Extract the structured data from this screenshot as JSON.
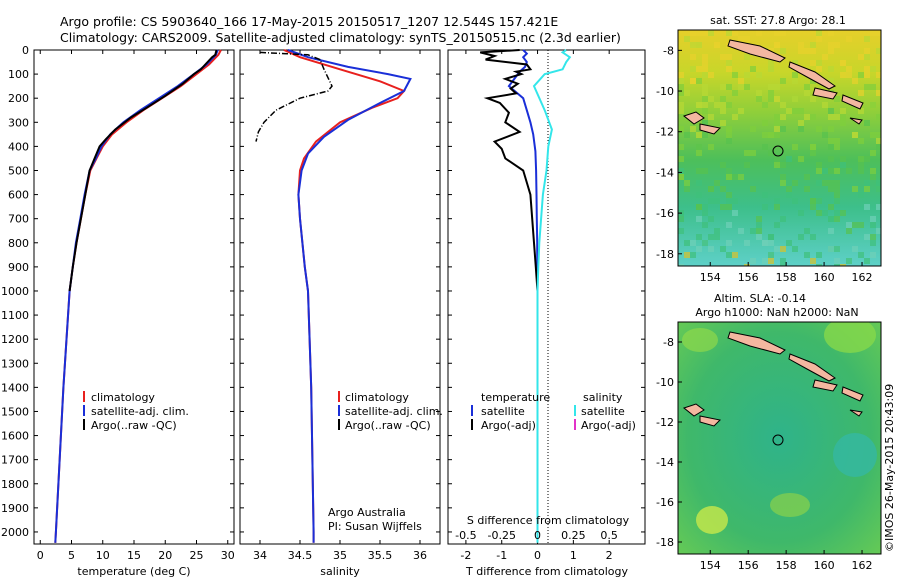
{
  "header": {
    "line1": "Argo profile: CS 5903640_166 17-May-2015 20150517_1207 12.544S 157.421E",
    "line2": "Climatology: CARS2009. Satellite-adjusted climatology: synTS_20150515.nc (2.3d earlier)"
  },
  "credits": {
    "argo": "Argo Australia",
    "pi": "PI: Susan Wijffels",
    "stamp": "©IMOS 26-May-2015 20:43:09"
  },
  "colors": {
    "climatology": "#e8201e",
    "satellite": "#1a2fd8",
    "argo": "#000000",
    "satellite_salinity": "#33e6ea",
    "argo_salinity": "#e233c8"
  },
  "chart_data": [
    {
      "type": "line",
      "panel": "temperature",
      "xlabel": "temperature (deg C)",
      "ylabel": "",
      "xlim": [
        -1,
        31
      ],
      "ylim": [
        2050,
        0
      ],
      "xticks": [
        0,
        5,
        10,
        15,
        20,
        25,
        30
      ],
      "yticks": [
        0,
        100,
        200,
        300,
        400,
        500,
        600,
        700,
        800,
        900,
        1000,
        1100,
        1200,
        1300,
        1400,
        1500,
        1600,
        1700,
        1800,
        1900,
        2000
      ],
      "legend": [
        "climatology",
        "satellite-adj. clim.",
        "Argo(..raw -QC)"
      ],
      "series": [
        {
          "name": "climatology",
          "color": "#e8201e",
          "points": [
            [
              28.9,
              0
            ],
            [
              28.5,
              20
            ],
            [
              27,
              60
            ],
            [
              25,
              100
            ],
            [
              22.5,
              150
            ],
            [
              19.5,
              200
            ],
            [
              16.5,
              250
            ],
            [
              13.8,
              300
            ],
            [
              11.5,
              350
            ],
            [
              10,
              400
            ],
            [
              9,
              450
            ],
            [
              8,
              500
            ],
            [
              7.2,
              600
            ],
            [
              6.5,
              700
            ],
            [
              5.8,
              800
            ],
            [
              5.2,
              900
            ],
            [
              4.7,
              1000
            ],
            [
              4.2,
              1200
            ],
            [
              3.7,
              1400
            ],
            [
              3.3,
              1600
            ],
            [
              2.9,
              1800
            ],
            [
              2.5,
              2000
            ],
            [
              2.4,
              2045
            ]
          ]
        },
        {
          "name": "satellite-adj. clim.",
          "color": "#1a2fd8",
          "points": [
            [
              28.4,
              0
            ],
            [
              28.1,
              20
            ],
            [
              26.6,
              60
            ],
            [
              24.6,
              100
            ],
            [
              22,
              150
            ],
            [
              19,
              200
            ],
            [
              16,
              250
            ],
            [
              13.3,
              300
            ],
            [
              11.2,
              350
            ],
            [
              9.8,
              400
            ],
            [
              8.9,
              450
            ],
            [
              7.9,
              500
            ],
            [
              7.1,
              600
            ],
            [
              6.4,
              700
            ],
            [
              5.7,
              800
            ],
            [
              5.2,
              900
            ],
            [
              4.7,
              1000
            ],
            [
              4.2,
              1200
            ],
            [
              3.7,
              1400
            ],
            [
              3.3,
              1600
            ],
            [
              2.9,
              1800
            ],
            [
              2.5,
              2000
            ],
            [
              2.4,
              2045
            ]
          ]
        },
        {
          "name": "Argo(..raw -QC)",
          "color": "#000000",
          "points": [
            [
              28.2,
              0
            ],
            [
              28,
              20
            ],
            [
              27.5,
              30
            ],
            [
              26.4,
              60
            ],
            [
              25.7,
              80
            ],
            [
              24.6,
              100
            ],
            [
              22.8,
              140
            ],
            [
              20,
              190
            ],
            [
              17,
              240
            ],
            [
              14.5,
              280
            ],
            [
              12,
              330
            ],
            [
              10.5,
              370
            ],
            [
              9.5,
              400
            ],
            [
              8.7,
              450
            ],
            [
              7.9,
              500
            ],
            [
              7.2,
              600
            ],
            [
              6.5,
              700
            ],
            [
              5.8,
              800
            ],
            [
              5.2,
              900
            ],
            [
              4.7,
              1000
            ]
          ]
        }
      ]
    },
    {
      "type": "line",
      "panel": "salinity",
      "xlabel": "salinity",
      "xlim": [
        33.75,
        36.25
      ],
      "ylim": [
        2050,
        0
      ],
      "xticks": [
        34,
        34.5,
        35,
        35.5,
        36
      ],
      "legend": [
        "climatology",
        "satellite-adj. clim.",
        "Argo(..raw -QC)"
      ],
      "series": [
        {
          "name": "climatology",
          "color": "#e8201e",
          "points": [
            [
              34.3,
              0
            ],
            [
              34.5,
              30
            ],
            [
              35,
              80
            ],
            [
              35.5,
              130
            ],
            [
              35.8,
              170
            ],
            [
              35.72,
              200
            ],
            [
              35.4,
              240
            ],
            [
              35,
              300
            ],
            [
              34.7,
              380
            ],
            [
              34.55,
              450
            ],
            [
              34.5,
              500
            ],
            [
              34.48,
              600
            ],
            [
              34.5,
              700
            ],
            [
              34.53,
              800
            ],
            [
              34.56,
              900
            ],
            [
              34.6,
              1000
            ],
            [
              34.62,
              1200
            ],
            [
              34.64,
              1400
            ],
            [
              34.65,
              1600
            ],
            [
              34.66,
              1800
            ],
            [
              34.67,
              2000
            ],
            [
              34.67,
              2045
            ]
          ]
        },
        {
          "name": "satellite-adj. clim.",
          "color": "#1a2fd8",
          "points": [
            [
              34.35,
              0
            ],
            [
              34.6,
              30
            ],
            [
              35.1,
              70
            ],
            [
              35.6,
              100
            ],
            [
              35.88,
              120
            ],
            [
              35.8,
              170
            ],
            [
              35.5,
              220
            ],
            [
              35.1,
              290
            ],
            [
              34.8,
              360
            ],
            [
              34.6,
              430
            ],
            [
              34.52,
              500
            ],
            [
              34.48,
              600
            ],
            [
              34.5,
              700
            ],
            [
              34.53,
              800
            ],
            [
              34.56,
              900
            ],
            [
              34.6,
              1000
            ],
            [
              34.62,
              1200
            ],
            [
              34.64,
              1400
            ],
            [
              34.65,
              1600
            ],
            [
              34.66,
              1800
            ],
            [
              34.67,
              2000
            ],
            [
              34.67,
              2045
            ]
          ]
        },
        {
          "name": "Argo(..raw -QC)",
          "color": "#000000",
          "points": [
            [
              34,
              10
            ],
            [
              34.3,
              15
            ],
            [
              34.6,
              20
            ],
            [
              34.75,
              40
            ],
            [
              34.8,
              80
            ],
            [
              34.9,
              150
            ],
            [
              34.85,
              170
            ],
            [
              34.5,
              200
            ],
            [
              34.2,
              250
            ],
            [
              34.05,
              300
            ],
            [
              33.98,
              340
            ],
            [
              33.95,
              380
            ]
          ]
        }
      ]
    },
    {
      "type": "line",
      "panel": "difference",
      "xlabel_bottom": "T difference from climatology",
      "xlabel_top": "S difference from climatology",
      "xlim": [
        -2.5,
        3
      ],
      "ylim": [
        2050,
        0
      ],
      "xticks": [
        -2,
        -1,
        0,
        1,
        2
      ],
      "xticks_top": [
        "-0.5",
        "-0.25",
        "0",
        "0.25",
        "0.5"
      ],
      "legend_temperature": {
        "title": "temperature",
        "items": [
          "satellite",
          "Argo(-adj)"
        ]
      },
      "legend_salinity": {
        "title": "salinity",
        "items": [
          "satellite",
          "Argo(-adj)"
        ]
      },
      "series": [
        {
          "name": "satellite",
          "group": "temperature",
          "color": "#1a2fd8",
          "points": [
            [
              -0.4,
              0
            ],
            [
              -0.3,
              15
            ],
            [
              -0.4,
              30
            ],
            [
              -0.3,
              50
            ],
            [
              -0.35,
              70
            ],
            [
              -0.5,
              90
            ],
            [
              -0.6,
              110
            ],
            [
              -0.8,
              150
            ],
            [
              -0.4,
              200
            ],
            [
              -0.3,
              250
            ],
            [
              -0.2,
              300
            ],
            [
              -0.12,
              350
            ],
            [
              -0.06,
              420
            ],
            [
              -0.04,
              500
            ],
            [
              -0.03,
              600
            ],
            [
              -0.02,
              700
            ],
            [
              -0.01,
              800
            ],
            [
              -0.01,
              900
            ],
            [
              0,
              1000
            ],
            [
              0,
              1100
            ]
          ]
        },
        {
          "name": "Argo(-adj)",
          "group": "temperature",
          "color": "#000000",
          "points": [
            [
              -0.5,
              0
            ],
            [
              -1.6,
              10
            ],
            [
              -1.2,
              25
            ],
            [
              -1.45,
              40
            ],
            [
              -0.3,
              60
            ],
            [
              -0.2,
              80
            ],
            [
              -0.6,
              90
            ],
            [
              -0.45,
              100
            ],
            [
              -0.9,
              120
            ],
            [
              -0.55,
              140
            ],
            [
              -0.75,
              160
            ],
            [
              -0.6,
              180
            ],
            [
              -1.4,
              200
            ],
            [
              -1.05,
              220
            ],
            [
              -0.8,
              260
            ],
            [
              -0.9,
              300
            ],
            [
              -0.5,
              340
            ],
            [
              -1.2,
              380
            ],
            [
              -1,
              410
            ],
            [
              -0.9,
              450
            ],
            [
              -0.4,
              500
            ],
            [
              -0.3,
              550
            ],
            [
              -0.2,
              600
            ],
            [
              -0.15,
              700
            ],
            [
              -0.1,
              800
            ],
            [
              -0.05,
              900
            ],
            [
              0,
              1000
            ]
          ]
        },
        {
          "name": "satellite",
          "group": "salinity",
          "color": "#33e6ea",
          "points": [
            [
              0.8,
              0
            ],
            [
              0.7,
              10
            ],
            [
              0.9,
              30
            ],
            [
              0.8,
              50
            ],
            [
              0.7,
              80
            ],
            [
              0.2,
              100
            ],
            [
              -0.1,
              150
            ],
            [
              0.2,
              250
            ],
            [
              0.4,
              330
            ],
            [
              0.3,
              400
            ],
            [
              0.25,
              500
            ],
            [
              0.15,
              600
            ],
            [
              0.1,
              700
            ],
            [
              0.05,
              800
            ],
            [
              0.02,
              900
            ],
            [
              0,
              1000
            ],
            [
              0,
              1400
            ],
            [
              0,
              2000
            ],
            [
              0,
              2045
            ]
          ]
        }
      ]
    },
    {
      "type": "heatmap",
      "panel": "sst-map",
      "title": "sat. SST: 27.8 Argo: 28.1",
      "xlim": [
        152.3,
        163
      ],
      "ylim": [
        -18.6,
        -7
      ],
      "xticks": [
        154,
        156,
        158,
        160,
        162
      ],
      "yticks": [
        -8,
        -10,
        -12,
        -14,
        -16,
        -18
      ],
      "marker": {
        "lon": 157.421,
        "lat": -12.544
      }
    },
    {
      "type": "heatmap",
      "panel": "sla-map",
      "title_line1": "Altim. SLA: -0.14",
      "title_line2": "Argo h1000: NaN h2000: NaN",
      "xlim": [
        152.3,
        163
      ],
      "ylim": [
        -18.6,
        -7
      ],
      "xticks": [
        154,
        156,
        158,
        160,
        162
      ],
      "yticks": [
        -8,
        -10,
        -12,
        -14,
        -16,
        -18
      ],
      "marker": {
        "lon": 157.421,
        "lat": -12.544
      }
    }
  ]
}
